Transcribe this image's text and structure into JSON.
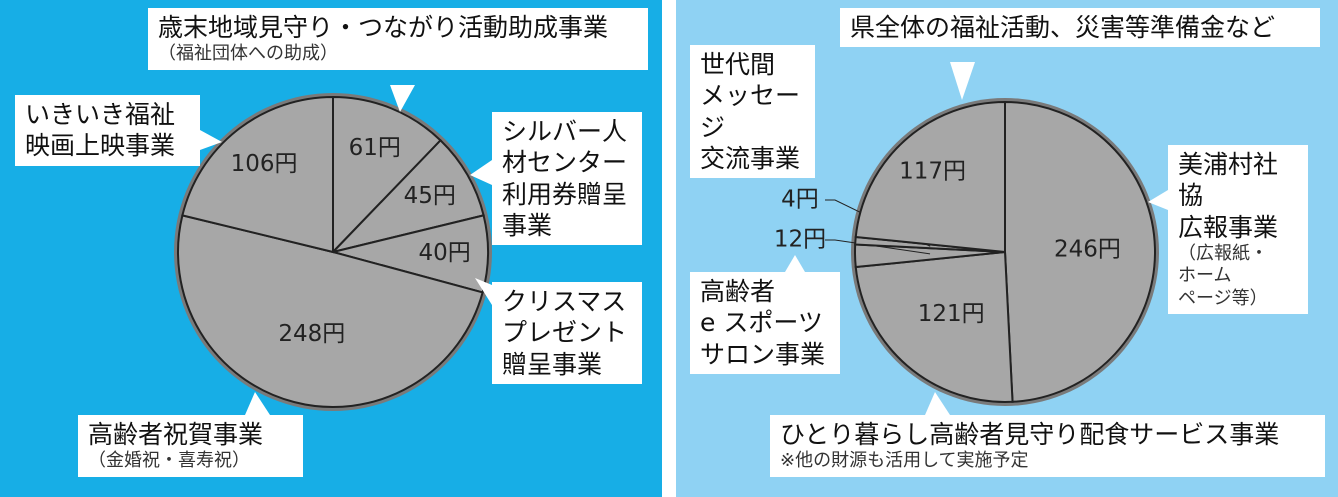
{
  "chart_data": [
    {
      "type": "pie",
      "color": "#a7a7a7",
      "categories": [
        "歳末地域見守り・つながり活動助成事業",
        "シルバー人\n材センター\n利用券贈呈\n事業",
        "クリスマス\nプレゼント\n贈呈事業",
        "高齢者祝賀事業",
        "いきいき福祉\n映画上映事業"
      ],
      "category_notes": [
        "（福祉団体への助成）",
        null,
        null,
        "（金婚祝・喜寿祝）",
        null
      ],
      "values": [
        61,
        45,
        40,
        248,
        106
      ],
      "value_labels": [
        "61円",
        "45円",
        "40円",
        "248円",
        "106円"
      ]
    },
    {
      "type": "pie",
      "color": "#a7a7a7",
      "categories": [
        "美浦村社協\n広報事業",
        "ひとり暮らし高齢者見守り配食サービス事業",
        "高齢者\ne スポーツ\nサロン事業",
        "世代間\nメッセージ\n交流事業",
        "県全体の福祉活動、災害等準備金など"
      ],
      "category_notes": [
        "（広報紙・\nホーム\nページ等）",
        "※他の財源も活用して実施予定",
        null,
        null,
        null
      ],
      "values": [
        246,
        121,
        12,
        4,
        117
      ],
      "value_labels": [
        "246円",
        "121円",
        "12円",
        "4円",
        "117円"
      ]
    }
  ]
}
